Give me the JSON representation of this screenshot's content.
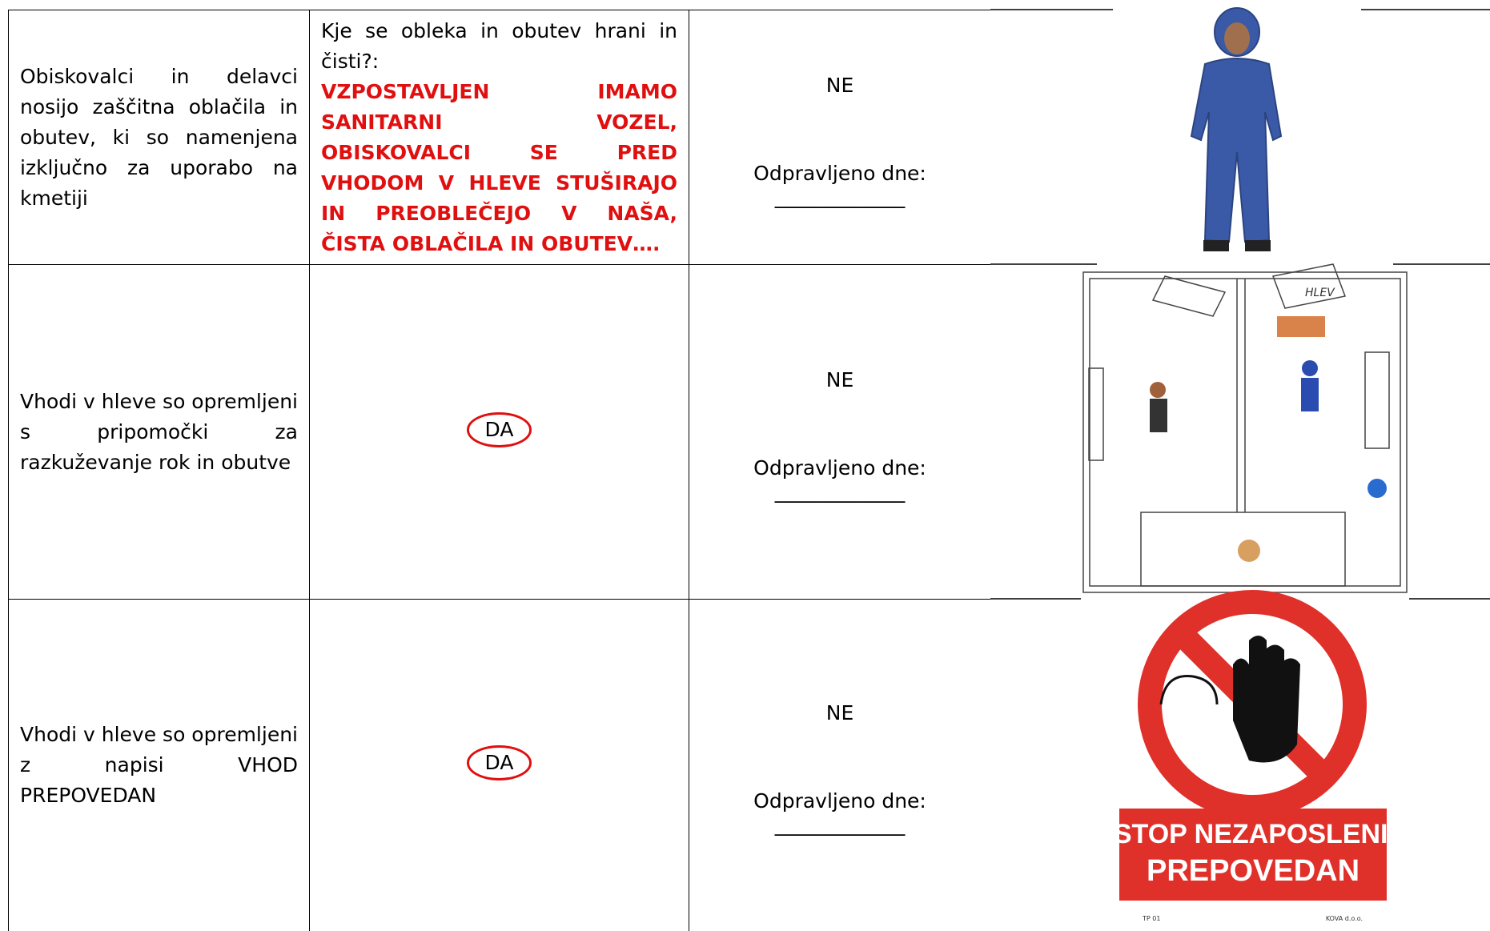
{
  "rows": [
    {
      "requirement": "Obiskovalci in delavci nosijo zaščitna oblačila in obutev, ki so namenjena izključno za uporabo na kmetiji",
      "question": "Kje se obleka in obutev hrani in čisti?:",
      "answer": "VZPOSTAVLJEN IMAMO SANITARNI VOZEL, OBISKOVALCI SE PRED VHODOM V HLEVE STUŠIRAJO IN PREOBLEČEJO V NAŠA, ČISTA OBLAČILA IN OBUTEV….",
      "status": "NE",
      "fixed_label": "Odpravljeno dne:",
      "fixed_blank": "_____________"
    },
    {
      "requirement": "Vhodi v hleve so opremljeni s pripomočki za razkuževanje rok in obutve",
      "answer": "DA",
      "status": "NE",
      "fixed_label": "Odpravljeno dne:",
      "fixed_blank": "_____________"
    },
    {
      "requirement": "Vhodi v hleve so opremljeni z napisi VHOD PREPOVEDAN",
      "answer": "DA",
      "status": "NE",
      "fixed_label": "Odpravljeno dne:",
      "fixed_blank": "_____________"
    }
  ],
  "images": {
    "plan_label": "HLEV",
    "sign_line_1": "VSTOP NEZAPOSLENIM",
    "sign_line_2": "PREPOVEDAN",
    "sign_code": "TP 01",
    "sign_maker": "KOVA d.o.o."
  }
}
